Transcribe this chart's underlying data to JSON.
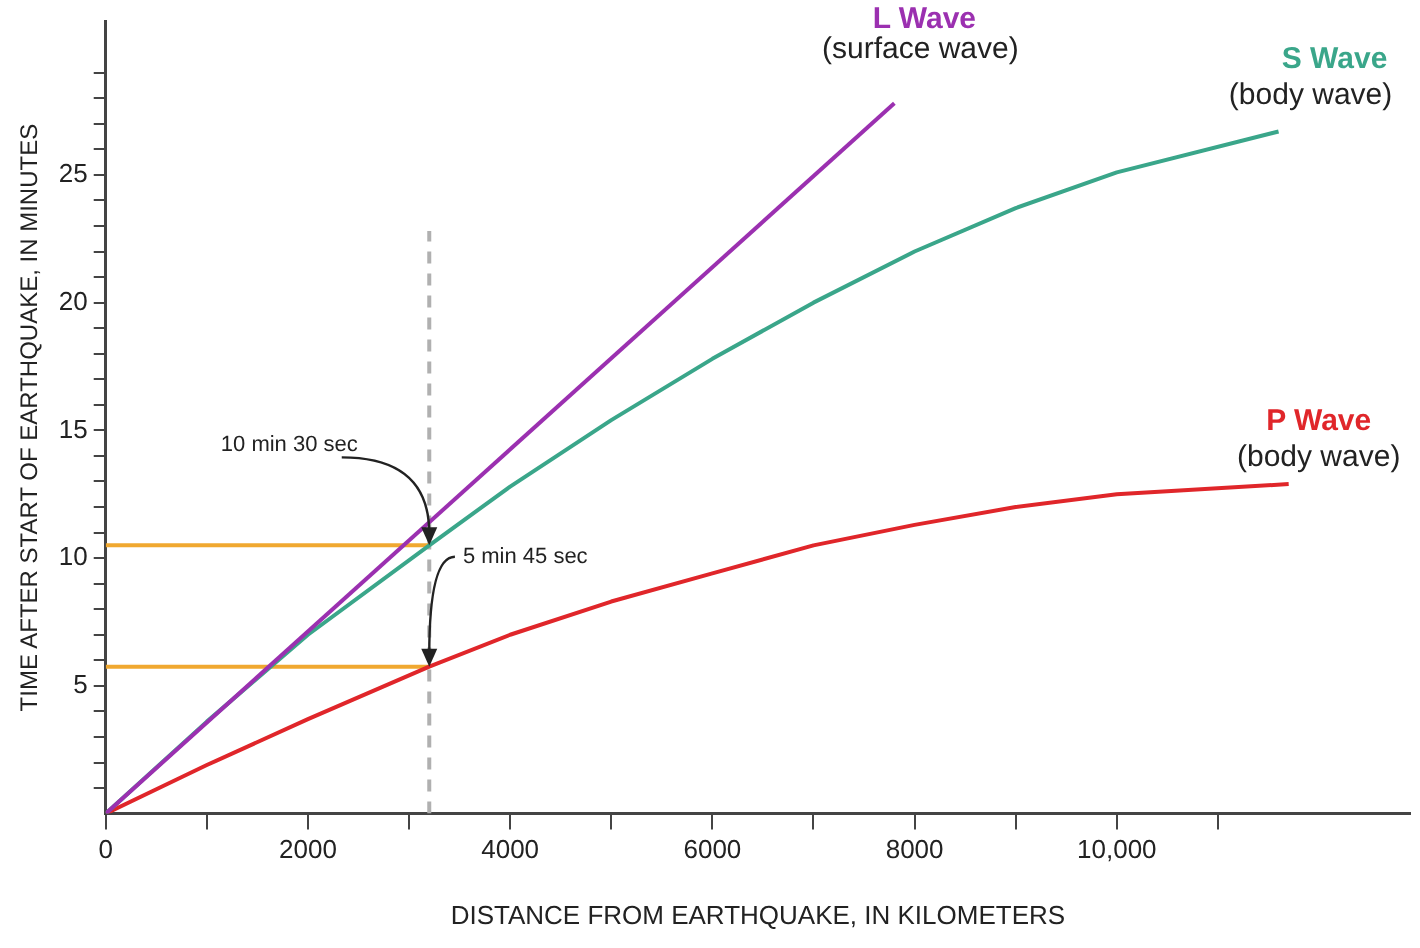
{
  "chart_data": {
    "type": "line",
    "xlabel": "DISTANCE FROM EARTHQUAKE, IN KILOMETERS",
    "ylabel": "TIME AFTER START OF EARTHQUAKE, IN MINUTES",
    "xlim": [
      0,
      12900
    ],
    "ylim": [
      0,
      31
    ],
    "xticks": [
      0,
      {
        "value": 1000,
        "label": null
      },
      2000,
      {
        "value": 3000,
        "label": null
      },
      4000,
      {
        "value": 5000,
        "label": null
      },
      6000,
      {
        "value": 7000,
        "label": null
      },
      8000,
      {
        "value": 9000,
        "label": null
      },
      {
        "value": 10000,
        "label": "10,000"
      },
      {
        "value": 11000,
        "label": null
      }
    ],
    "yticks": [
      {
        "value": 1,
        "label": null
      },
      {
        "value": 2,
        "label": null
      },
      {
        "value": 3,
        "label": null
      },
      {
        "value": 4,
        "label": null
      },
      5,
      {
        "value": 6,
        "label": null
      },
      {
        "value": 7,
        "label": null
      },
      {
        "value": 8,
        "label": null
      },
      {
        "value": 9,
        "label": null
      },
      10,
      {
        "value": 11,
        "label": null
      },
      {
        "value": 12,
        "label": null
      },
      {
        "value": 13,
        "label": null
      },
      {
        "value": 14,
        "label": null
      },
      15,
      {
        "value": 16,
        "label": null
      },
      {
        "value": 17,
        "label": null
      },
      {
        "value": 18,
        "label": null
      },
      {
        "value": 19,
        "label": null
      },
      20,
      {
        "value": 21,
        "label": null
      },
      {
        "value": 22,
        "label": null
      },
      {
        "value": 23,
        "label": null
      },
      {
        "value": 24,
        "label": null
      },
      25,
      {
        "value": 26,
        "label": null
      },
      {
        "value": 27,
        "label": null
      },
      {
        "value": 28,
        "label": null
      },
      {
        "value": 29,
        "label": null
      }
    ],
    "grid": false,
    "legend": false,
    "marker": "none",
    "series": [
      {
        "name": "L Wave",
        "color": "#9b30b0",
        "x": [
          0,
          7800
        ],
        "values": [
          0,
          27.8
        ]
      },
      {
        "name": "S Wave",
        "color": "#3aa68a",
        "x": [
          0,
          1000,
          2000,
          3200,
          4000,
          5000,
          6000,
          7000,
          8000,
          9000,
          10000,
          11600
        ],
        "values": [
          0,
          3.6,
          7.0,
          10.5,
          12.8,
          15.4,
          17.8,
          20.0,
          22.0,
          23.7,
          25.1,
          26.7
        ]
      },
      {
        "name": "P Wave",
        "color": "#e0262a",
        "x": [
          0,
          1000,
          2000,
          3200,
          4000,
          5000,
          6000,
          7000,
          8000,
          9000,
          10000,
          11700
        ],
        "values": [
          0,
          1.9,
          3.7,
          5.75,
          7.0,
          8.3,
          9.4,
          10.5,
          11.3,
          12.0,
          12.5,
          12.9
        ]
      },
      {
        "color": "#f0a830",
        "x": [
          0,
          3200
        ],
        "values": [
          10.5,
          10.5
        ]
      },
      {
        "color": "#f0a830",
        "x": [
          0,
          3200
        ],
        "values": [
          5.75,
          5.75
        ]
      },
      {
        "color": "#b0b0b0",
        "x": [
          3200,
          3200
        ],
        "values": [
          0,
          22.8
        ],
        "line_style": "dashed"
      }
    ],
    "annotations": [
      {
        "text": "10 min 30 sec",
        "x": 3200,
        "y": 10.5
      },
      {
        "text": "5 min 45 sec",
        "x": 3200,
        "y": 5.75
      },
      {
        "text": "(surface wave)",
        "x": 7800,
        "y": 27.8
      },
      {
        "text": "(body wave)",
        "x": 11600,
        "y": 26.7
      },
      {
        "text": "(body wave)",
        "x": 11700,
        "y": 12.9
      }
    ]
  }
}
